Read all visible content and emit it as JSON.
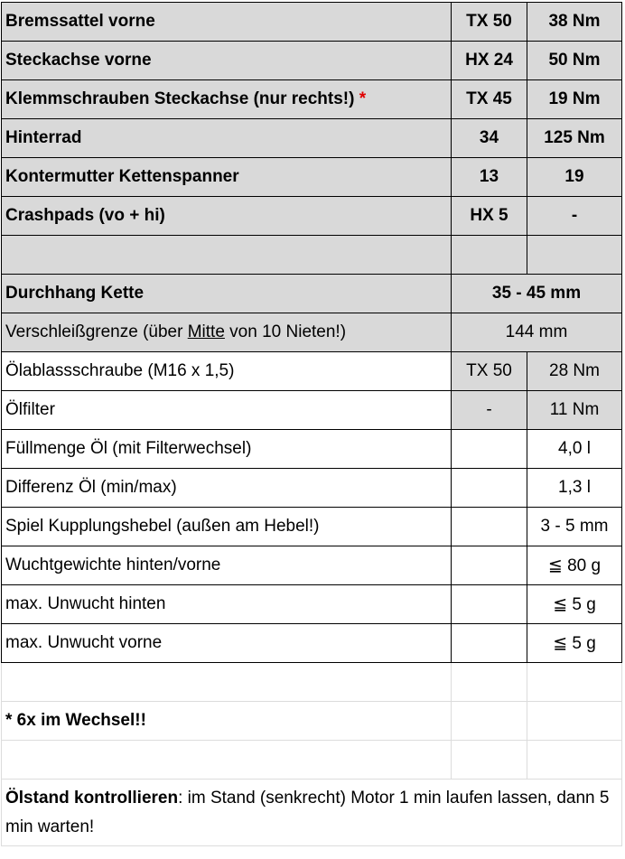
{
  "colors": {
    "header_fill": "#d9d9d9",
    "asterisk": "#e00000",
    "highlight_value": "#1fa64a"
  },
  "rows": [
    {
      "label": "Bremssattel vorne",
      "tool": "TX 50",
      "value": "38 Nm"
    },
    {
      "label": "Steckachse vorne",
      "tool": "HX 24",
      "value": "50 Nm"
    },
    {
      "label": "Klemmschrauben Steckachse (nur rechts!)",
      "marker": "*",
      "tool": "TX 45",
      "value": "19 Nm"
    },
    {
      "label": "Hinterrad",
      "tool": "34",
      "value": "125 Nm"
    },
    {
      "label": "Kontermutter Kettenspanner",
      "tool": "13",
      "value": "19"
    },
    {
      "label": "Crashpads (vo + hi)",
      "tool": "HX 5",
      "value": "-"
    }
  ],
  "chain": {
    "slack_label": "Durchhang Kette",
    "slack_value": "35 - 45 mm",
    "wear_label_pre": "Verschleißgrenze (über ",
    "wear_label_underline": "Mitte",
    "wear_label_post": " von 10 Nieten!)",
    "wear_value": "144 mm"
  },
  "oil": [
    {
      "label": "Ölablassschraube (M16 x 1,5)",
      "tool": "TX 50",
      "value": "28 Nm"
    },
    {
      "label": "Ölfilter",
      "tool": "-",
      "value": "11 Nm"
    },
    {
      "label": "Füllmenge Öl (mit Filterwechsel)",
      "tool": "",
      "value": "4,0 l"
    },
    {
      "label": "Differenz Öl (min/max)",
      "tool": "",
      "value": "1,3 l"
    },
    {
      "label": "Spiel Kupplungshebel (außen am Hebel!)",
      "tool": "",
      "value": "3 - 5 mm"
    },
    {
      "label": "Wuchtgewichte hinten/vorne",
      "tool": "",
      "value": "≦ 80 g"
    },
    {
      "label": "max. Unwucht hinten",
      "tool": "",
      "value": "≦ 5 g"
    },
    {
      "label": "max. Unwucht vorne",
      "tool": "",
      "value": "≦ 5 g"
    }
  ],
  "footnote": "* 6x im Wechsel!!",
  "oil_check": {
    "bold": "Ölstand kontrollieren",
    "text": ": im Stand (senkrecht) Motor 1 min laufen lassen, dann 5 min warten!"
  }
}
